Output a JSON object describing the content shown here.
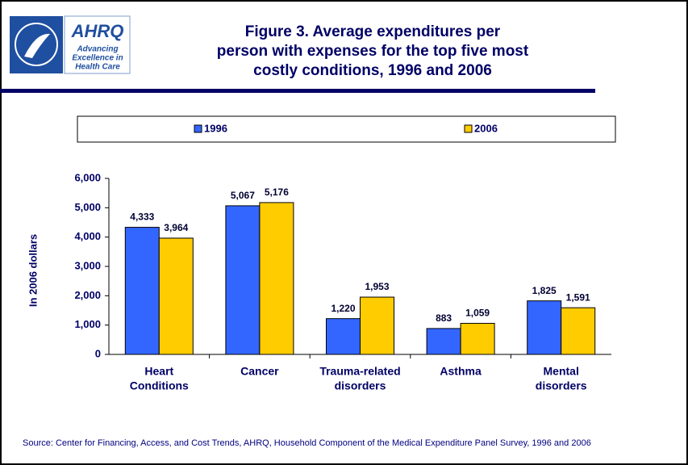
{
  "header": {
    "logo": {
      "name": "AHRQ",
      "tagline": [
        "Advancing",
        "Excellence in",
        "Health Care"
      ]
    }
  },
  "chart_data": {
    "type": "bar",
    "title": [
      "Figure 3. Average expenditures per",
      "person with expenses for the top five most",
      "costly conditions, 1996 and 2006"
    ],
    "y_label": "In 2006 dollars",
    "categories": [
      [
        "Heart",
        "Conditions"
      ],
      [
        "Cancer"
      ],
      [
        "Trauma-related",
        "disorders"
      ],
      [
        "Asthma"
      ],
      [
        "Mental",
        "disorders"
      ]
    ],
    "series": [
      {
        "name": "1996",
        "color": "#3366ff",
        "values": [
          4333,
          5067,
          1220,
          883,
          1825
        ],
        "value_labels": [
          "4,333",
          "5,067",
          "1,220",
          "883",
          "1,825"
        ]
      },
      {
        "name": "2006",
        "color": "#ffcc00",
        "values": [
          3964,
          5176,
          1953,
          1059,
          1591
        ],
        "value_labels": [
          "3,964",
          "5,176",
          "1,953",
          "1,059",
          "1,591"
        ]
      }
    ],
    "ylim": [
      0,
      6000
    ],
    "yticks": [
      0,
      {
        "value": 1000,
        "label": "1,000"
      },
      {
        "value": 2000,
        "label": "2,000"
      },
      {
        "value": 3000,
        "label": "3,000"
      },
      {
        "value": 4000,
        "label": "4,000"
      },
      {
        "value": 5000,
        "label": "5,000"
      },
      {
        "value": 6000,
        "label": "6,000"
      }
    ],
    "legend": "top"
  },
  "footer": {
    "source": "Source: Center for Financing, Access, and Cost Trends, AHRQ, Household Component of the Medical Expenditure Panel Survey, 1996 and 2006"
  }
}
